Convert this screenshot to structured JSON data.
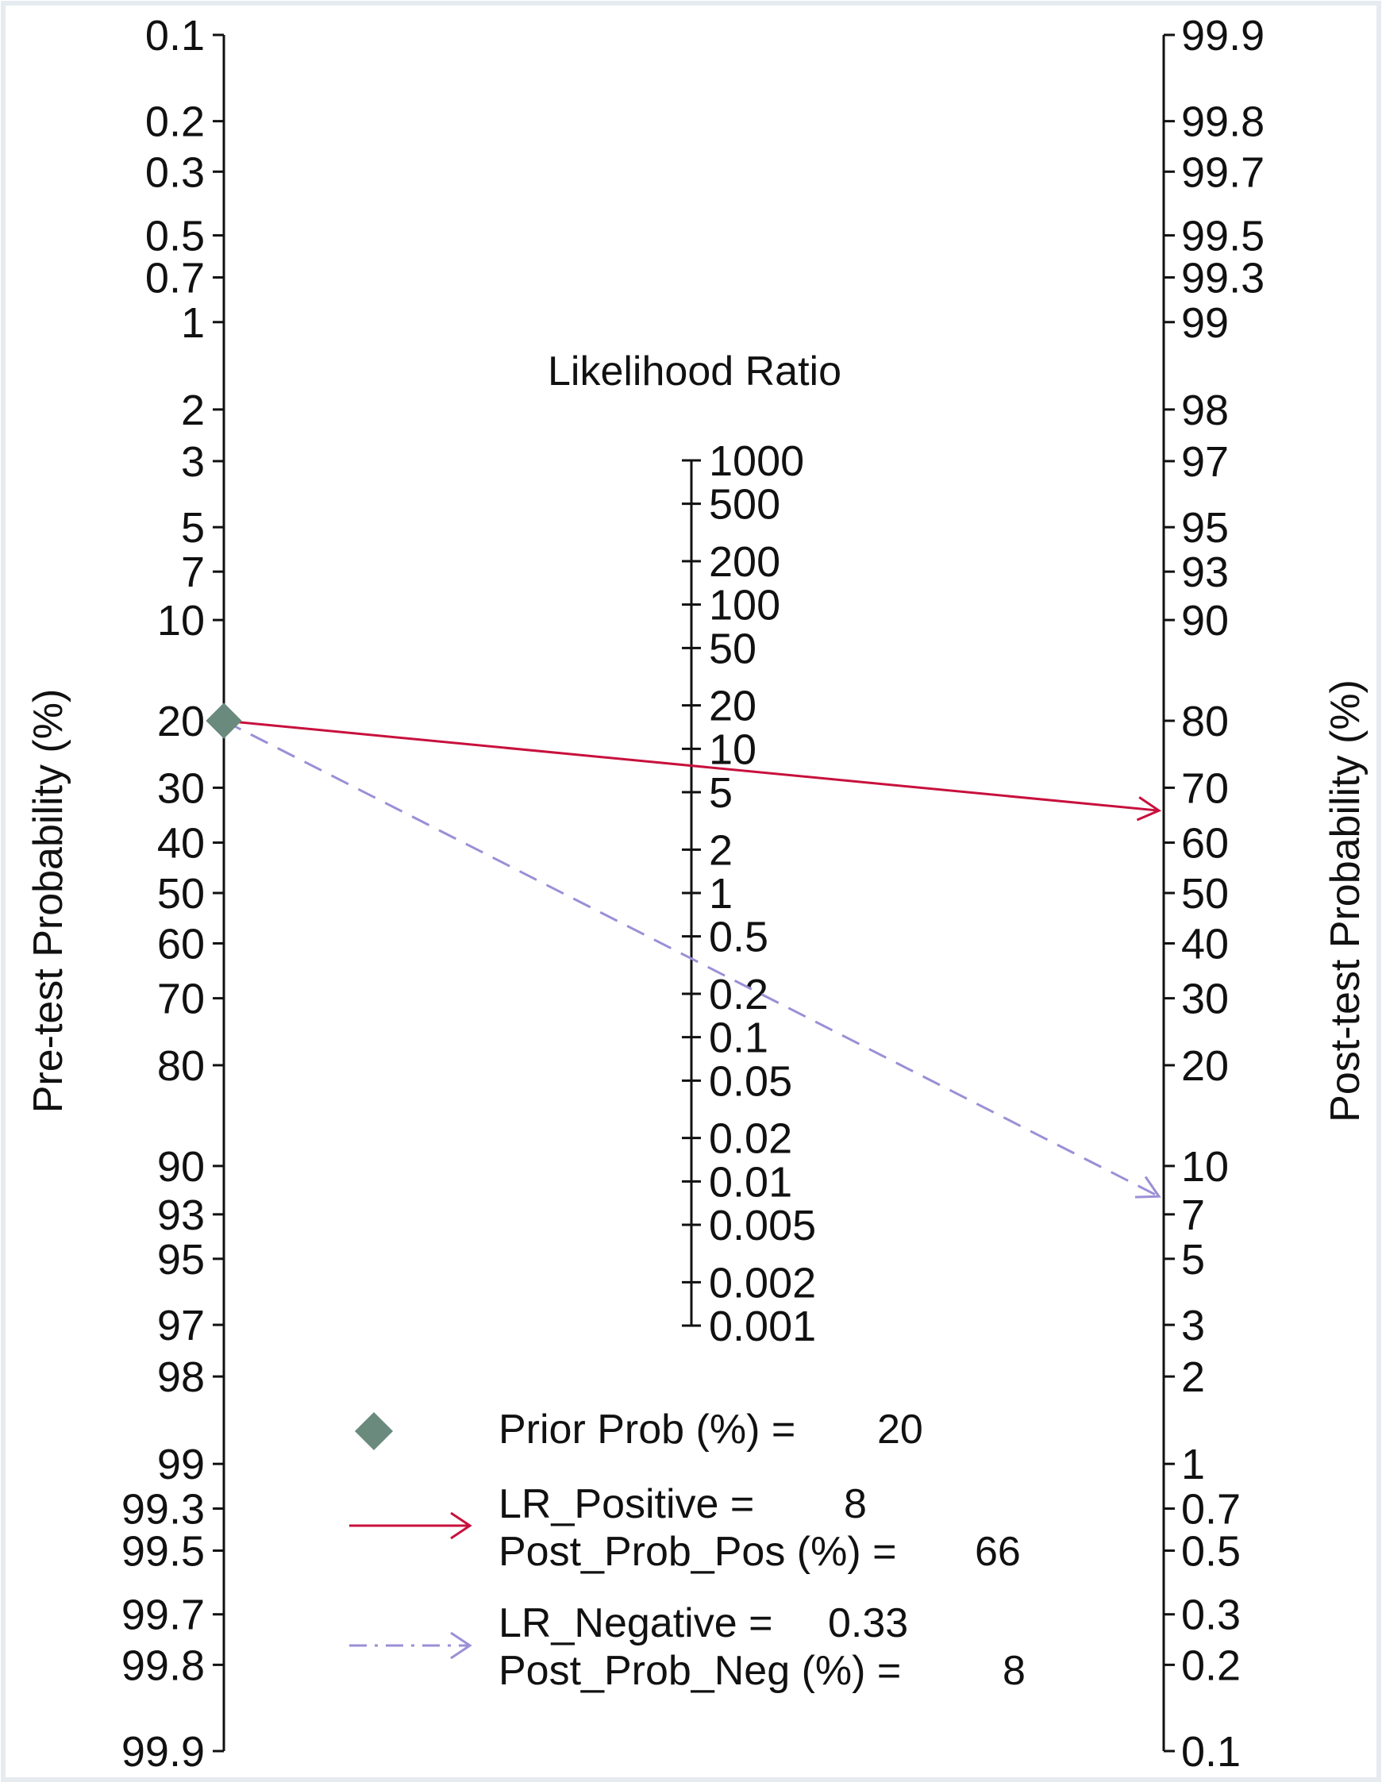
{
  "chart_data": {
    "type": "nomogram",
    "title": "",
    "left_axis": {
      "label": "Pre-test Probability (%)",
      "ticks": [
        "0.1",
        "0.2",
        "0.3",
        "0.5",
        "0.7",
        "1",
        "2",
        "3",
        "5",
        "7",
        "10",
        "20",
        "30",
        "40",
        "50",
        "60",
        "70",
        "80",
        "90",
        "93",
        "95",
        "97",
        "98",
        "99",
        "99.3",
        "99.5",
        "99.7",
        "99.8",
        "99.9"
      ],
      "range": [
        0.1,
        99.9
      ]
    },
    "right_axis": {
      "label": "Post-test Probability (%)",
      "ticks": [
        "99.9",
        "99.8",
        "99.7",
        "99.5",
        "99.3",
        "99",
        "98",
        "97",
        "95",
        "93",
        "90",
        "80",
        "70",
        "60",
        "50",
        "40",
        "30",
        "20",
        "10",
        "7",
        "5",
        "3",
        "2",
        "1",
        "0.7",
        "0.5",
        "0.3",
        "0.2",
        "0.1"
      ],
      "range": [
        0.1,
        99.9
      ]
    },
    "middle_axis": {
      "label": "Likelihood Ratio",
      "ticks": [
        "1000",
        "500",
        "200",
        "100",
        "50",
        "20",
        "10",
        "5",
        "2",
        "1",
        "0.5",
        "0.2",
        "0.1",
        "0.05",
        "0.02",
        "0.01",
        "0.005",
        "0.002",
        "0.001"
      ],
      "range": [
        0.001,
        1000
      ],
      "scale": "log"
    },
    "prior_prob": 20,
    "lr_positive": 8,
    "post_prob_pos": 66,
    "lr_negative": 0.33,
    "post_prob_neg": 8,
    "series": [
      {
        "name": "LR_Positive",
        "from_pretest": 20,
        "to_posttest": 66,
        "color": "#c8103d",
        "style": "solid"
      },
      {
        "name": "LR_Negative",
        "from_pretest": 20,
        "to_posttest": 8,
        "color": "#9b8fd6",
        "style": "dashed"
      }
    ],
    "marker_color": "#6a8a7e",
    "legend": {
      "placement": "bottom-center",
      "prior_label": "Prior Prob (%) =",
      "prior_value": "20",
      "lr_pos_label": "LR_Positive =",
      "lr_pos_value": "8",
      "post_pos_label": "Post_Prob_Pos (%) =",
      "post_pos_value": "66",
      "lr_neg_label": "LR_Negative =",
      "lr_neg_value": "0.33",
      "post_neg_label": "Post_Prob_Neg (%) =",
      "post_neg_value": "8"
    }
  }
}
